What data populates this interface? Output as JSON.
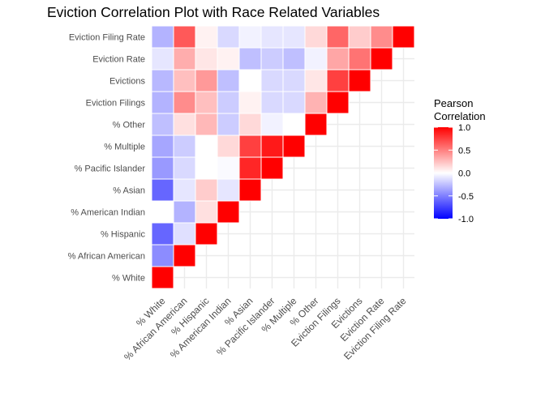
{
  "chart_data": {
    "type": "heatmap",
    "title": "Eviction Correlation Plot with Race Related Variables",
    "xlabel": "",
    "ylabel": "",
    "variables": [
      "% White",
      "% African American",
      "% Hispanic",
      "% American Indian",
      "% Asian",
      "% Pacific Islander",
      "% Multiple",
      "% Other",
      "Eviction Filings",
      "Evictions",
      "Eviction Rate",
      "Eviction Filing Rate"
    ],
    "y_labels": [
      "% White",
      "% African American",
      "% Hispanic",
      "% American Indian",
      "% Asian",
      "% Pacific Islander",
      "% Multiple",
      "% Other",
      "Eviction Filings",
      "Evictions",
      "Eviction Rate",
      "Eviction Filing Rate"
    ],
    "matrix_lower_triangle": [
      [
        1.0
      ],
      [
        -0.45,
        1.0
      ],
      [
        -0.6,
        -0.12,
        1.0
      ],
      [
        0.0,
        -0.3,
        0.12,
        1.0
      ],
      [
        -0.6,
        -0.1,
        0.2,
        -0.1,
        1.0
      ],
      [
        -0.4,
        -0.15,
        0.0,
        -0.02,
        0.85,
        1.0
      ],
      [
        -0.35,
        -0.2,
        0.0,
        0.15,
        0.75,
        0.9,
        1.0
      ],
      [
        -0.25,
        0.12,
        0.28,
        -0.2,
        0.15,
        -0.05,
        0.0,
        1.0
      ],
      [
        -0.3,
        0.45,
        0.25,
        -0.2,
        0.05,
        -0.15,
        -0.15,
        0.3,
        1.0
      ],
      [
        -0.28,
        0.25,
        0.4,
        -0.25,
        0.0,
        -0.15,
        -0.15,
        0.1,
        0.75,
        1.0
      ],
      [
        -0.1,
        0.32,
        0.1,
        0.05,
        -0.25,
        -0.2,
        -0.25,
        -0.05,
        0.35,
        0.55,
        1.0
      ],
      [
        -0.3,
        0.65,
        0.05,
        -0.15,
        -0.05,
        -0.1,
        -0.1,
        0.15,
        0.6,
        0.2,
        0.45,
        1.0
      ]
    ],
    "legend": {
      "title_line1": "Pearson",
      "title_line2": "Correlation",
      "ticks": [
        "1.0",
        "0.5",
        "0.0",
        "-0.5",
        "-1.0"
      ],
      "placement": "right"
    },
    "colors": {
      "low": "#0000ff",
      "mid": "#ffffff",
      "high": "#ff0000"
    },
    "grid": true,
    "range": [
      -1,
      1
    ]
  }
}
